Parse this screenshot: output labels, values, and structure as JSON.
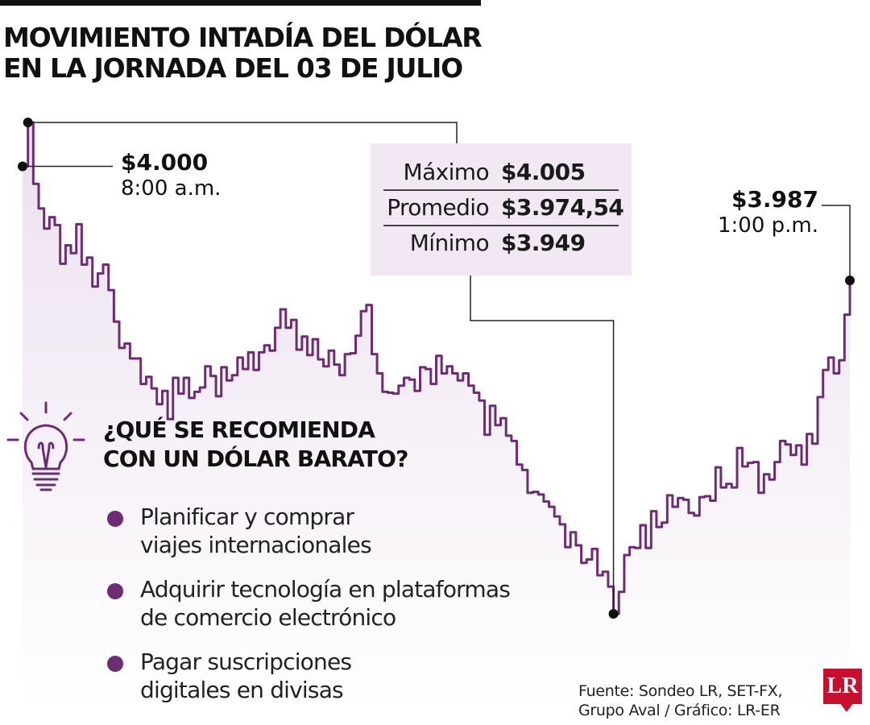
{
  "title": {
    "line1": "MOVIMIENTO INTADÍA DEL DÓLAR",
    "line2": "EN LA JORNADA DEL 03 DE JULIO"
  },
  "chart_data": {
    "type": "line",
    "title": "MOVIMIENTO INTADÍA DEL DÓLAR EN LA JORNADA DEL 03 DE JULIO",
    "x_range": [
      "8:00 a.m.",
      "1:00 p.m."
    ],
    "y_range": [
      3949,
      4005
    ],
    "values": [
      4000.0,
      4005.0,
      3998.0,
      3995.2,
      3992.9,
      3994.2,
      3993.3,
      3988.9,
      3991.0,
      3990.1,
      3993.4,
      3988.8,
      3989.6,
      3986.3,
      3987.8,
      3988.8,
      3985.9,
      3982.3,
      3979.3,
      3979.8,
      3978.1,
      3978.1,
      3975.2,
      3976.0,
      3974.7,
      3972.9,
      3974.4,
      3971.2,
      3975.9,
      3974.1,
      3975.9,
      3973.6,
      3974.3,
      3974.8,
      3977.2,
      3976.1,
      3973.8,
      3977.1,
      3975.6,
      3976.2,
      3978.2,
      3976.9,
      3978.8,
      3976.8,
      3978.8,
      3979.6,
      3979.0,
      3981.6,
      3983.7,
      3981.6,
      3982.5,
      3979.1,
      3980.6,
      3978.5,
      3980.3,
      3978.0,
      3977.2,
      3979.0,
      3977.4,
      3976.2,
      3978.6,
      3978.7,
      3980.7,
      3983.5,
      3984.2,
      3978.6,
      3976.4,
      3974.3,
      3974.2,
      3974.1,
      3975.0,
      3975.9,
      3975.7,
      3974.4,
      3977.1,
      3976.9,
      3975.2,
      3978.4,
      3976.4,
      3977.2,
      3976.4,
      3975.6,
      3976.4,
      3975.0,
      3974.2,
      3973.3,
      3969.4,
      3972.7,
      3970.5,
      3971.3,
      3969.3,
      3968.7,
      3966.0,
      3965.4,
      3962.8,
      3962.9,
      3962.6,
      3961.8,
      3961.2,
      3960.1,
      3959.2,
      3956.6,
      3958.3,
      3956.8,
      3954.8,
      3955.2,
      3956.4,
      3953.4,
      3953.8,
      3952.1,
      3949.0,
      3951.5,
      3955.7,
      3956.6,
      3956.5,
      3959.1,
      3956.5,
      3960.7,
      3958.9,
      3959.4,
      3962.5,
      3961.2,
      3962.2,
      3962.0,
      3960.5,
      3960.2,
      3962.3,
      3962.4,
      3961.9,
      3965.7,
      3963.4,
      3963.8,
      3963.4,
      3967.9,
      3965.8,
      3966.2,
      3966.3,
      3962.8,
      3964.9,
      3964.3,
      3966.3,
      3968.7,
      3968.3,
      3967.1,
      3968.2,
      3966.0,
      3969.5,
      3968.4,
      3973.7,
      3976.8,
      3978.2,
      3976.4,
      3977.9,
      3983.1,
      3987.0
    ],
    "callouts": [
      {
        "value": "$4.000",
        "time": "8:00 a.m."
      },
      {
        "value": "$3.987",
        "time": "1:00 p.m."
      }
    ],
    "stats": [
      {
        "label": "Máximo",
        "value": "$4.005"
      },
      {
        "label": "Promedio",
        "value": "$3.974,54"
      },
      {
        "label": "Mínimo",
        "value": "$3.949"
      }
    ],
    "colors": {
      "line": "#6e2c74",
      "area_top": "#ece0ef",
      "marker": "#111111"
    }
  },
  "recommendations": {
    "title_line1": "¿QUÉ SE RECOMIENDA",
    "title_line2": "CON UN DÓLAR BARATO?",
    "items": [
      "Planificar y comprar\nviajes internacionales",
      "Adquirir tecnología en plataformas\nde comercio electrónico",
      "Pagar suscripciones\ndigitales en divisas"
    ],
    "bullet_color": "#6e2c74",
    "icon": "lightbulb-icon"
  },
  "source": {
    "line1": "Fuente: Sondeo LR, SET-FX,",
    "line2": "Grupo Aval / Gráfico: LR-ER"
  },
  "logo": {
    "text": "LR",
    "color": "#c8102e"
  }
}
